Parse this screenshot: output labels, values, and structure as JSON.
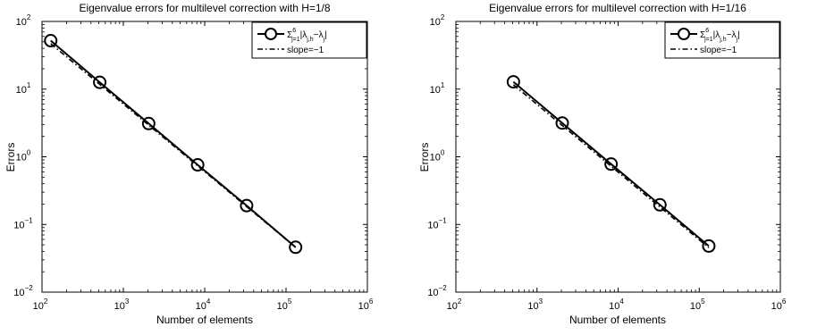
{
  "chart_data": [
    {
      "type": "line",
      "title": "Eigenvalue errors for multilevel correction with H=1/8",
      "xlabel": "Number of elements",
      "ylabel": "Errors",
      "x_scale": "log",
      "y_scale": "log",
      "xlim": [
        100,
        1000000
      ],
      "ylim": [
        0.01,
        100
      ],
      "x_ticks": [
        {
          "value": 100,
          "base": "10",
          "exp": "2"
        },
        {
          "value": 1000,
          "base": "10",
          "exp": "3"
        },
        {
          "value": 10000,
          "base": "10",
          "exp": "4"
        },
        {
          "value": 100000,
          "base": "10",
          "exp": "5"
        },
        {
          "value": 1000000,
          "base": "10",
          "exp": "6"
        }
      ],
      "y_ticks": [
        {
          "value": 0.01,
          "base": "10",
          "exp": "−2"
        },
        {
          "value": 0.1,
          "base": "10",
          "exp": "−1"
        },
        {
          "value": 1,
          "base": "10",
          "exp": "0"
        },
        {
          "value": 10,
          "base": "10",
          "exp": "1"
        },
        {
          "value": 100,
          "base": "10",
          "exp": "2"
        }
      ],
      "grid": false,
      "legend_position": "top-right",
      "series": [
        {
          "name": "Σ_{j=1}^{6}|λ_{j,h}−λ_j|",
          "style": "solid-circle",
          "color": "#000000",
          "x": [
            128,
            512,
            2048,
            8192,
            32768,
            131072
          ],
          "y": [
            52,
            12.6,
            3.1,
            0.76,
            0.19,
            0.046
          ]
        },
        {
          "name": "slope=−1",
          "style": "dash-dot",
          "color": "#000000",
          "x": [
            128,
            131072
          ],
          "y": [
            47,
            0.0459
          ]
        }
      ]
    },
    {
      "type": "line",
      "title": "Eigenvalue errors for multilevel correction with H=1/16",
      "xlabel": "Number of elements",
      "ylabel": "Errors",
      "x_scale": "log",
      "y_scale": "log",
      "xlim": [
        100,
        1000000
      ],
      "ylim": [
        0.01,
        100
      ],
      "x_ticks": [
        {
          "value": 100,
          "base": "10",
          "exp": "2"
        },
        {
          "value": 1000,
          "base": "10",
          "exp": "3"
        },
        {
          "value": 10000,
          "base": "10",
          "exp": "4"
        },
        {
          "value": 100000,
          "base": "10",
          "exp": "5"
        },
        {
          "value": 1000000,
          "base": "10",
          "exp": "6"
        }
      ],
      "y_ticks": [
        {
          "value": 0.01,
          "base": "10",
          "exp": "−2"
        },
        {
          "value": 0.1,
          "base": "10",
          "exp": "−1"
        },
        {
          "value": 1,
          "base": "10",
          "exp": "0"
        },
        {
          "value": 10,
          "base": "10",
          "exp": "1"
        },
        {
          "value": 100,
          "base": "10",
          "exp": "2"
        }
      ],
      "grid": false,
      "legend_position": "top-right",
      "series": [
        {
          "name": "Σ_{j=1}^{6}|λ_{j,h}−λ_j|",
          "style": "solid-circle",
          "color": "#000000",
          "x": [
            512,
            2048,
            8192,
            32768,
            131072
          ],
          "y": [
            12.8,
            3.15,
            0.78,
            0.195,
            0.048
          ]
        },
        {
          "name": "slope=−1",
          "style": "dash-dot",
          "color": "#000000",
          "x": [
            512,
            131072
          ],
          "y": [
            11.6,
            0.0453
          ]
        }
      ]
    }
  ],
  "legend": {
    "series1": {
      "sigma": "Σ",
      "sup": "6",
      "sub": "j=1",
      "body_a": "|λ",
      "body_sub1": "j,h",
      "body_b": "−λ",
      "body_sub2": "j",
      "body_c": "|"
    },
    "series2_label": "slope=−1"
  }
}
